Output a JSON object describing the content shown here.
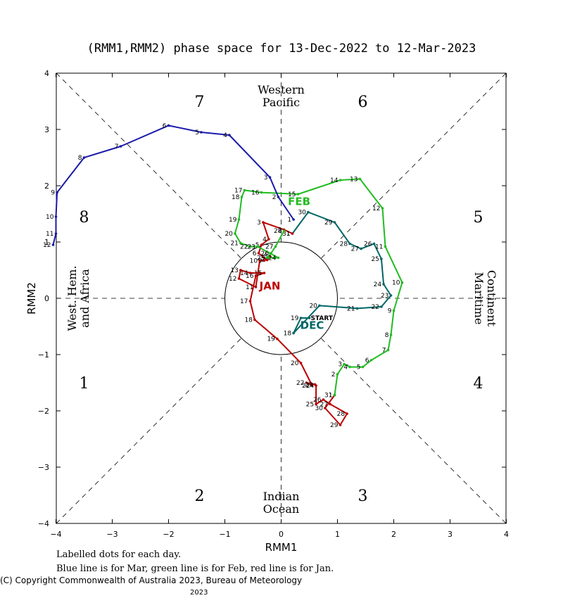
{
  "chart_data": {
    "type": "line",
    "title": "(RMM1,RMM2) phase space for 13-Dec-2022 to 12-Mar-2023",
    "xlabel": "RMM1",
    "ylabel": "RMM2",
    "xlim": [
      -4,
      4
    ],
    "ylim": [
      -4,
      4
    ],
    "xticks": [
      "−4",
      "−3",
      "−2",
      "−1",
      "0",
      "1",
      "2",
      "3",
      "4"
    ],
    "yticks": [
      "−4",
      "−3",
      "−2",
      "−1",
      "0",
      "1",
      "2",
      "3",
      "4"
    ],
    "phases": [
      {
        "label": "1",
        "x": -3.5,
        "y": -1.5
      },
      {
        "label": "2",
        "x": -1.45,
        "y": -3.5
      },
      {
        "label": "3",
        "x": 1.45,
        "y": -3.5
      },
      {
        "label": "4",
        "x": 3.5,
        "y": -1.5
      },
      {
        "label": "5",
        "x": 3.5,
        "y": 1.45
      },
      {
        "label": "6",
        "x": 1.45,
        "y": 3.5
      },
      {
        "label": "7",
        "x": -1.45,
        "y": 3.5
      },
      {
        "label": "8",
        "x": -3.5,
        "y": 1.45
      }
    ],
    "regions": {
      "top": [
        "Western",
        "Pacific"
      ],
      "bottom": [
        "Indian",
        "Ocean"
      ],
      "left": [
        "West. Hem.",
        "and Africa"
      ],
      "right": [
        "Maritime",
        "Continent"
      ]
    },
    "series": [
      {
        "month": "DEC",
        "color": "#006666",
        "label_pos": [
          0.55,
          -0.47
        ],
        "points": [
          {
            "d": "START",
            "x": 0.5,
            "y": -0.35
          },
          {
            "d": "19",
            "x": 0.35,
            "y": -0.35
          },
          {
            "d": "18",
            "x": 0.22,
            "y": -0.62
          },
          {
            "d": "20",
            "x": 0.68,
            "y": -0.13
          },
          {
            "d": "21",
            "x": 1.35,
            "y": -0.18
          },
          {
            "d": "22",
            "x": 1.78,
            "y": -0.15
          },
          {
            "d": "23",
            "x": 1.95,
            "y": 0.05
          },
          {
            "d": "24",
            "x": 1.82,
            "y": 0.25
          },
          {
            "d": "25",
            "x": 1.78,
            "y": 0.7
          },
          {
            "d": "26",
            "x": 1.65,
            "y": 0.97
          },
          {
            "d": "27",
            "x": 1.42,
            "y": 0.88
          },
          {
            "d": "28",
            "x": 1.22,
            "y": 0.97
          },
          {
            "d": "29",
            "x": 0.95,
            "y": 1.35
          },
          {
            "d": "30",
            "x": 0.48,
            "y": 1.53
          },
          {
            "d": "31",
            "x": 0.2,
            "y": 1.15
          }
        ]
      },
      {
        "month": "JAN",
        "color": "#bb0000",
        "label_pos": [
          -0.2,
          0.23
        ],
        "points": [
          {
            "d": "1",
            "x": 0.2,
            "y": 1.15
          },
          {
            "d": "2",
            "x": 0.05,
            "y": 1.22
          },
          {
            "d": "3",
            "x": -0.32,
            "y": 1.35
          },
          {
            "d": "4",
            "x": -0.22,
            "y": 1.05
          },
          {
            "d": "5",
            "x": -0.35,
            "y": 0.95
          },
          {
            "d": "6",
            "x": -0.4,
            "y": 0.8
          },
          {
            "d": "7",
            "x": -0.25,
            "y": 0.68
          },
          {
            "d": "8",
            "x": -0.2,
            "y": 0.75
          },
          {
            "d": "9",
            "x": -0.3,
            "y": 0.67
          },
          {
            "d": "10",
            "x": -0.38,
            "y": 0.67
          },
          {
            "d": "11",
            "x": -0.45,
            "y": 0.2
          },
          {
            "d": "12",
            "x": -0.75,
            "y": 0.35
          },
          {
            "d": "13",
            "x": -0.72,
            "y": 0.5
          },
          {
            "d": "14",
            "x": -0.55,
            "y": 0.45
          },
          {
            "d": "15",
            "x": -0.3,
            "y": 0.45
          },
          {
            "d": "16",
            "x": -0.45,
            "y": 0.4
          },
          {
            "d": "17",
            "x": -0.55,
            "y": -0.05
          },
          {
            "d": "18",
            "x": -0.47,
            "y": -0.38
          },
          {
            "d": "19",
            "x": -0.07,
            "y": -0.72
          },
          {
            "d": "20",
            "x": 0.35,
            "y": -1.15
          },
          {
            "d": "21",
            "x": 0.55,
            "y": -1.55
          },
          {
            "d": "22",
            "x": 0.45,
            "y": -1.5
          },
          {
            "d": "23",
            "x": 0.6,
            "y": -1.53
          },
          {
            "d": "24",
            "x": 0.62,
            "y": -1.55
          },
          {
            "d": "25",
            "x": 0.62,
            "y": -1.88
          },
          {
            "d": "26",
            "x": 0.75,
            "y": -1.8
          },
          {
            "d": "27",
            "x": 0.87,
            "y": -1.88
          },
          {
            "d": "28",
            "x": 1.17,
            "y": -2.05
          },
          {
            "d": "29",
            "x": 1.05,
            "y": -2.25
          },
          {
            "d": "30",
            "x": 0.78,
            "y": -1.95
          },
          {
            "d": "31",
            "x": 0.95,
            "y": -1.72
          }
        ]
      },
      {
        "month": "FEB",
        "color": "#22bb22",
        "label_pos": [
          0.32,
          1.73
        ],
        "points": [
          {
            "d": "1",
            "x": 0.95,
            "y": -1.72
          },
          {
            "d": "2",
            "x": 1.0,
            "y": -1.35
          },
          {
            "d": "3",
            "x": 1.12,
            "y": -1.17
          },
          {
            "d": "4",
            "x": 1.22,
            "y": -1.22
          },
          {
            "d": "5",
            "x": 1.45,
            "y": -1.22
          },
          {
            "d": "6",
            "x": 1.6,
            "y": -1.1
          },
          {
            "d": "7",
            "x": 1.9,
            "y": -0.92
          },
          {
            "d": "8",
            "x": 1.95,
            "y": -0.65
          },
          {
            "d": "9",
            "x": 2.0,
            "y": -0.22
          },
          {
            "d": "10",
            "x": 2.15,
            "y": 0.28
          },
          {
            "d": "11",
            "x": 1.85,
            "y": 0.92
          },
          {
            "d": "12",
            "x": 1.8,
            "y": 1.6
          },
          {
            "d": "13",
            "x": 1.4,
            "y": 2.12
          },
          {
            "d": "14",
            "x": 1.05,
            "y": 2.1
          },
          {
            "d": "15",
            "x": 0.3,
            "y": 1.85
          },
          {
            "d": "16",
            "x": -0.35,
            "y": 1.88
          },
          {
            "d": "17",
            "x": -0.65,
            "y": 1.92
          },
          {
            "d": "18",
            "x": -0.7,
            "y": 1.8
          },
          {
            "d": "19",
            "x": -0.75,
            "y": 1.4
          },
          {
            "d": "20",
            "x": -0.82,
            "y": 1.15
          },
          {
            "d": "21",
            "x": -0.72,
            "y": 0.98
          },
          {
            "d": "22",
            "x": -0.55,
            "y": 0.92
          },
          {
            "d": "23",
            "x": -0.42,
            "y": 0.92
          },
          {
            "d": "24",
            "x": -0.05,
            "y": 0.72
          },
          {
            "d": "25",
            "x": -0.25,
            "y": 0.72
          },
          {
            "d": "26",
            "x": -0.18,
            "y": 0.8
          },
          {
            "d": "27",
            "x": -0.1,
            "y": 0.92
          },
          {
            "d": "28",
            "x": 0.05,
            "y": 1.2
          }
        ]
      },
      {
        "month": "MAR",
        "color": "#1a1aaa",
        "label_pos": null,
        "points": [
          {
            "d": "1",
            "x": 0.22,
            "y": 1.4
          },
          {
            "d": "2",
            "x": -0.05,
            "y": 1.8
          },
          {
            "d": "3",
            "x": -0.2,
            "y": 2.15
          },
          {
            "d": "4",
            "x": -0.92,
            "y": 2.9
          },
          {
            "d": "5",
            "x": -1.42,
            "y": 2.95
          },
          {
            "d": "6",
            "x": -2.0,
            "y": 3.07
          },
          {
            "d": "7",
            "x": -2.85,
            "y": 2.7
          },
          {
            "d": "8",
            "x": -3.5,
            "y": 2.5
          },
          {
            "d": "9",
            "x": -3.98,
            "y": 1.88
          },
          {
            "d": "10",
            "x": -4.0,
            "y": 1.45
          },
          {
            "d": "11",
            "x": -4.0,
            "y": 1.15
          },
          {
            "d": "12",
            "x": -4.05,
            "y": 0.95
          }
        ]
      }
    ]
  },
  "footer": {
    "line1": "Labelled dots for each day.",
    "line2": "Blue line is for Mar, green line is for Feb, red line is for Jan.",
    "copyright": "(C) Copyright Commonwealth of Australia 2023, Bureau of Meteorology",
    "year": "2023"
  }
}
